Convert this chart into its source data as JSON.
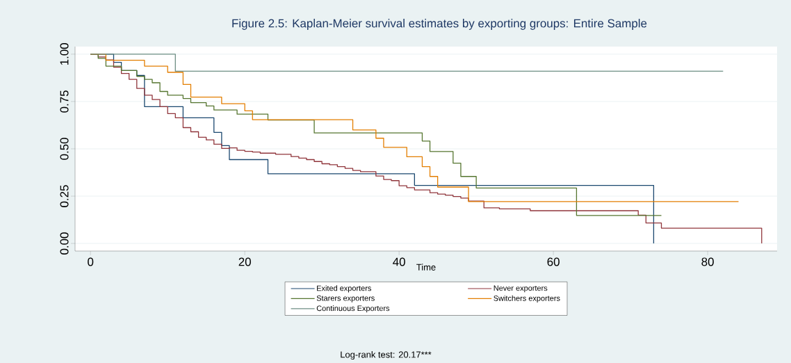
{
  "chart_data": {
    "type": "step",
    "title": "Figure 2.5: Kaplan-Meier survival estimates by exporting groups: Entire Sample",
    "xlabel": "Time",
    "annotations": [
      "Log-rank test: 20.17***"
    ],
    "xlim": [
      -2,
      89
    ],
    "ylim": [
      -0.04,
      1.04
    ],
    "xticks": [
      0,
      20,
      40,
      60,
      80
    ],
    "yticks": [
      {
        "value": 0,
        "label": "0.00"
      },
      {
        "value": 0.25,
        "label": "0.25"
      },
      {
        "value": 0.5,
        "label": "0.50"
      },
      {
        "value": 0.75,
        "label": "0.75"
      },
      {
        "value": 1,
        "label": "1.00"
      }
    ],
    "grid": "y",
    "legend": "bottom",
    "marker": "none",
    "line_style": "solid",
    "series": [
      {
        "name": "Exited exporters",
        "color": "#1a476f",
        "x": [
          0,
          3,
          4,
          6,
          7,
          12,
          16,
          17,
          18,
          23,
          42,
          73
        ],
        "values": [
          1,
          0.957,
          0.914,
          0.888,
          0.723,
          0.664,
          0.587,
          0.517,
          0.443,
          0.368,
          0.307,
          0
        ]
      },
      {
        "name": "Never exporters",
        "color": "#90353b",
        "x": [
          0,
          1,
          2,
          3,
          4,
          5,
          6,
          7,
          8,
          9,
          10,
          11,
          12,
          13,
          14,
          15,
          16,
          17,
          18,
          19,
          20,
          21,
          22,
          24,
          26,
          27,
          28,
          29,
          30,
          31,
          32,
          33,
          34,
          35,
          37,
          38,
          39,
          40,
          41,
          42,
          44,
          45,
          46,
          47,
          48,
          49,
          51,
          53,
          57,
          71,
          72,
          74,
          87
        ],
        "values": [
          1,
          0.985,
          0.97,
          0.931,
          0.898,
          0.867,
          0.819,
          0.783,
          0.76,
          0.723,
          0.686,
          0.664,
          0.612,
          0.59,
          0.561,
          0.547,
          0.524,
          0.502,
          0.505,
          0.492,
          0.487,
          0.483,
          0.477,
          0.471,
          0.459,
          0.451,
          0.443,
          0.433,
          0.421,
          0.416,
          0.406,
          0.397,
          0.386,
          0.379,
          0.356,
          0.338,
          0.332,
          0.305,
          0.295,
          0.283,
          0.268,
          0.261,
          0.255,
          0.248,
          0.24,
          0.224,
          0.188,
          0.183,
          0.173,
          0.15,
          0.108,
          0.081,
          0
        ]
      },
      {
        "name": "Starers exporters",
        "color": "#55752f",
        "x": [
          0,
          1,
          2,
          4,
          6,
          7,
          8,
          9,
          10,
          12,
          13,
          15,
          16,
          19,
          23,
          29,
          43,
          44,
          47,
          48,
          50,
          63,
          74
        ],
        "values": [
          1,
          0.978,
          0.937,
          0.914,
          0.883,
          0.867,
          0.849,
          0.803,
          0.783,
          0.766,
          0.744,
          0.726,
          0.705,
          0.683,
          0.652,
          0.584,
          0.541,
          0.486,
          0.424,
          0.354,
          0.293,
          0.148,
          0.148
        ]
      },
      {
        "name": "Switchers exporters",
        "color": "#e37e00",
        "x": [
          0,
          2,
          7,
          10,
          12,
          13,
          17,
          20,
          21,
          34,
          37,
          38,
          41,
          43,
          44,
          45,
          49,
          84
        ],
        "values": [
          1,
          0.968,
          0.937,
          0.904,
          0.84,
          0.773,
          0.738,
          0.701,
          0.654,
          0.6,
          0.556,
          0.508,
          0.458,
          0.406,
          0.354,
          0.298,
          0.221,
          0.221
        ]
      },
      {
        "name": "Continuous Exporters",
        "color": "#6e8e84",
        "x": [
          0,
          11,
          82
        ],
        "values": [
          1,
          0.91,
          0.91
        ]
      }
    ]
  }
}
